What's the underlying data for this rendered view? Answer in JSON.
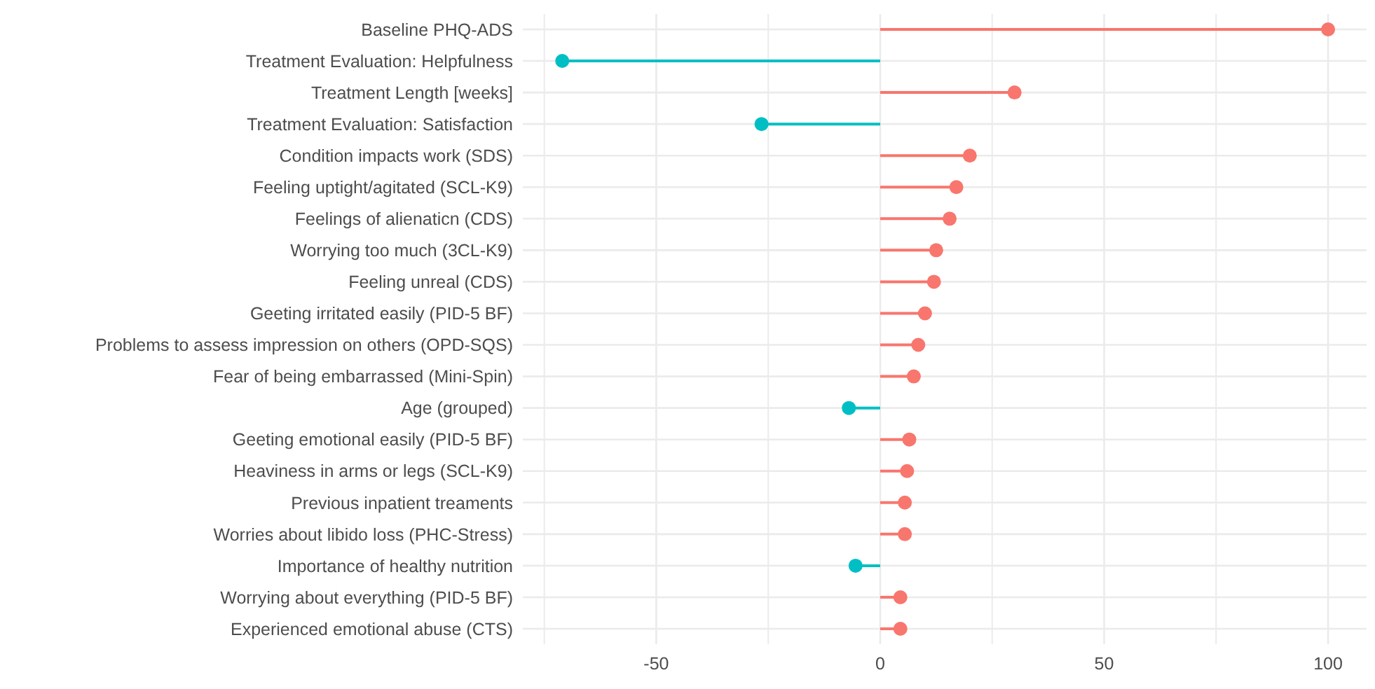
{
  "chart_data": {
    "type": "lollipop",
    "orientation": "horizontal",
    "categories": [
      "Baseline PHQ-ADS",
      "Treatment Evaluation: Helpfulness",
      "Treatment Length [weeks]",
      "Treatment Evaluation: Satisfaction",
      "Condition impacts work (SDS)",
      "Feeling uptight/agitated (SCL-K9)",
      "Feelings of alienaticn (CDS)",
      "Worrying too much (3CL-K9)",
      "Feeling unreal (CDS)",
      "Geeting irritated easily (PID-5 BF)",
      "Problems to assess impression on others (OPD-SQS)",
      "Fear of being embarrassed (Mini-Spin)",
      "Age (grouped)",
      "Geeting emotional easily (PID-5 BF)",
      "Heaviness in arms or legs (SCL-K9)",
      "Previous inpatient treaments",
      "Worries about libido loss (PHC-Stress)",
      "Importance of healthy nutrition",
      "Worrying about everything (PID-5 BF)",
      "Experienced emotional abuse (CTS)"
    ],
    "values": [
      100,
      -71,
      30,
      -26.5,
      20,
      17,
      15.5,
      12.5,
      12,
      10,
      8.5,
      7.5,
      -7,
      6.5,
      6,
      5.5,
      5.5,
      -5.5,
      4.5,
      4.5
    ],
    "colors": [
      "#f8766d",
      "#00bfc4",
      "#f8766d",
      "#00bfc4",
      "#f8766d",
      "#f8766d",
      "#f8766d",
      "#f8766d",
      "#f8766d",
      "#f8766d",
      "#f8766d",
      "#f8766d",
      "#00bfc4",
      "#f8766d",
      "#f8766d",
      "#f8766d",
      "#f8766d",
      "#00bfc4",
      "#f8766d",
      "#f8766d"
    ],
    "xlim": [
      -79.8,
      108.6
    ],
    "xticks": [
      {
        "value": -75,
        "label": null
      },
      -50,
      {
        "value": -25,
        "label": null
      },
      0,
      {
        "value": 25,
        "label": null
      },
      50,
      {
        "value": 75,
        "label": null
      },
      100
    ],
    "grid": true,
    "marker": "circle"
  }
}
